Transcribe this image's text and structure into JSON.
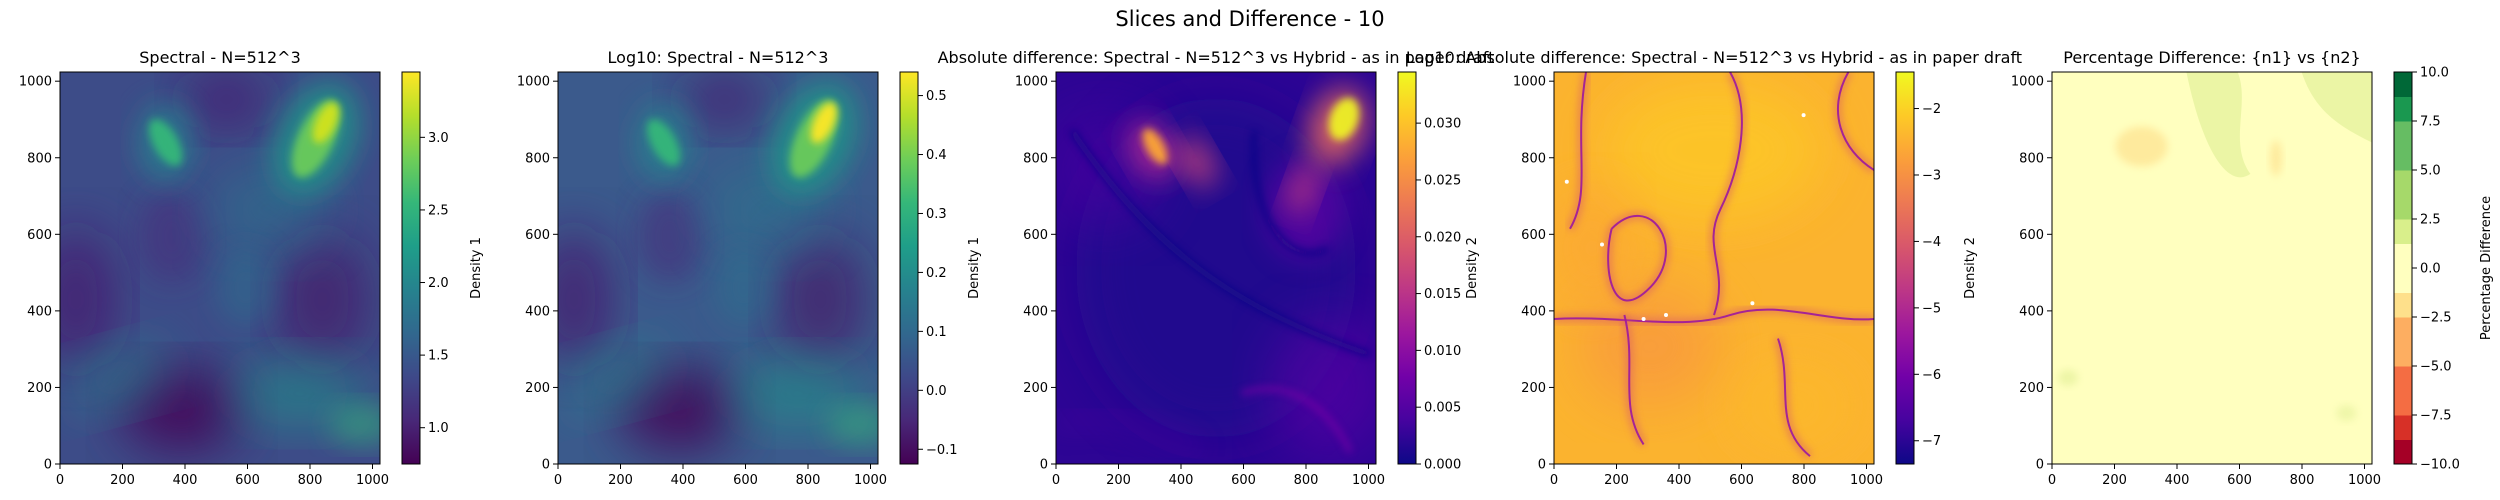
{
  "figure": {
    "suptitle": "Slices and Difference - 10"
  },
  "chart_data": [
    {
      "type": "heatmap",
      "title": "Spectral - N=512^3",
      "xlabel": "",
      "ylabel": "",
      "xlim": [
        0,
        1024
      ],
      "ylim": [
        0,
        1024
      ],
      "x_ticks": [
        0,
        200,
        400,
        600,
        800,
        1000
      ],
      "y_ticks": [
        0,
        200,
        400,
        600,
        800,
        1000
      ],
      "colormap": "viridis",
      "colorbar": {
        "label": "Density 1",
        "range": [
          0.75,
          3.45
        ],
        "ticks": [
          "1.0",
          "1.5",
          "2.0",
          "2.5",
          "3.0"
        ],
        "tick_values": [
          1.0,
          1.5,
          2.0,
          2.5,
          3.0
        ]
      }
    },
    {
      "type": "heatmap",
      "title": "Log10: Spectral - N=512^3",
      "xlabel": "",
      "ylabel": "",
      "xlim": [
        0,
        1024
      ],
      "ylim": [
        0,
        1024
      ],
      "x_ticks": [
        0,
        200,
        400,
        600,
        800,
        1000
      ],
      "y_ticks": [
        0,
        200,
        400,
        600,
        800,
        1000
      ],
      "colormap": "viridis",
      "colorbar": {
        "label": "Density 1",
        "range": [
          -0.125,
          0.54
        ],
        "ticks": [
          "−0.1",
          "0.0",
          "0.1",
          "0.2",
          "0.3",
          "0.4",
          "0.5"
        ],
        "tick_values": [
          -0.1,
          0.0,
          0.1,
          0.2,
          0.3,
          0.4,
          0.5
        ]
      }
    },
    {
      "type": "heatmap",
      "title": "Absolute difference: Spectral - N=512^3 vs Hybrid - as in paper draft",
      "xlabel": "",
      "ylabel": "",
      "xlim": [
        0,
        1024
      ],
      "ylim": [
        0,
        1024
      ],
      "x_ticks": [
        0,
        200,
        400,
        600,
        800,
        1000
      ],
      "y_ticks": [
        0,
        200,
        400,
        600,
        800,
        1000
      ],
      "colormap": "plasma",
      "colorbar": {
        "label": "Density 2",
        "range": [
          0.0,
          0.0345
        ],
        "ticks": [
          "0.000",
          "0.005",
          "0.010",
          "0.015",
          "0.020",
          "0.025",
          "0.030"
        ],
        "tick_values": [
          0.0,
          0.005,
          0.01,
          0.015,
          0.02,
          0.025,
          0.03
        ]
      }
    },
    {
      "type": "heatmap",
      "title": "Log10: Absolute difference: Spectral - N=512^3 vs Hybrid - as in paper draft",
      "xlabel": "",
      "ylabel": "",
      "xlim": [
        0,
        1024
      ],
      "ylim": [
        0,
        1024
      ],
      "x_ticks": [
        0,
        200,
        400,
        600,
        800,
        1000
      ],
      "y_ticks": [
        0,
        200,
        400,
        600,
        800,
        1000
      ],
      "colormap": "plasma",
      "colorbar": {
        "label": "Density 2",
        "range": [
          -7.35,
          -1.45
        ],
        "ticks": [
          "−7",
          "−6",
          "−5",
          "−4",
          "−3",
          "−2"
        ],
        "tick_values": [
          -7,
          -6,
          -5,
          -4,
          -3,
          -2
        ]
      }
    },
    {
      "type": "heatmap",
      "title": "Percentage Difference: {n1} vs {n2}",
      "xlabel": "",
      "ylabel": "",
      "xlim": [
        0,
        1024
      ],
      "ylim": [
        0,
        1024
      ],
      "x_ticks": [
        0,
        200,
        400,
        600,
        800,
        1000
      ],
      "y_ticks": [
        0,
        200,
        400,
        600,
        800,
        1000
      ],
      "colormap": "RdYlGn",
      "colorbar": {
        "label": "Percentage Difference",
        "range": [
          -10,
          10
        ],
        "ticks": [
          "−10.0",
          "−7.5",
          "−5.0",
          "−2.5",
          "0.0",
          "2.5",
          "5.0",
          "7.5",
          "10.0"
        ],
        "tick_values": [
          -10,
          -7.5,
          -5,
          -2.5,
          0,
          2.5,
          5,
          7.5,
          10
        ],
        "levels": 16
      }
    }
  ]
}
